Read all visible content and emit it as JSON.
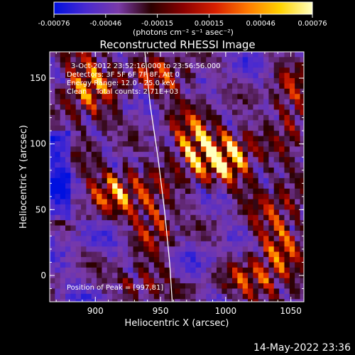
{
  "chart_data": {
    "type": "heatmap",
    "title": "Reconstructed RHESSI Image",
    "xlabel": "Heliocentric X (arcsec)",
    "ylabel": "Heliocentric Y (arcsec)",
    "xlim": [
      865,
      1060
    ],
    "ylim": [
      -20,
      170
    ],
    "x_ticks": [
      900,
      950,
      1000,
      1050
    ],
    "y_ticks": [
      0,
      50,
      100,
      150
    ],
    "colorbar": {
      "ticks": [
        "-0.00076",
        "-0.00046",
        "-0.00015",
        "0.00015",
        "0.00046",
        "0.00076"
      ],
      "range": [
        -0.00076,
        0.00076
      ],
      "units_label": "(photons cm⁻² s⁻¹ asec⁻²)",
      "stops": [
        "#0010e0",
        "#4a2ad0",
        "#7a3aa8",
        "#2a0000",
        "#8a0000",
        "#d82000",
        "#ff7a00",
        "#ffd200",
        "#ffffc0"
      ]
    },
    "annotations": [
      "3-Oct-2012 23:52:16.000 to 23:56:56.000",
      "Detectors: 3F 5F 6F 7F 8F, Att 0",
      "Energy Range: 12.0 - 25.0 keV",
      "Clean    Total counts: 2.71E+03"
    ],
    "peak_label": "Position of Peak = [997,81]",
    "peak": [
      997,
      81
    ],
    "limb_curve": [
      [
        938,
        170
      ],
      [
        942,
        130
      ],
      [
        948,
        90
      ],
      [
        953,
        50
      ],
      [
        957,
        10
      ],
      [
        959,
        -20
      ]
    ],
    "hot_regions": [
      {
        "x": 1000,
        "y": 90,
        "sx": 22,
        "sy": 20,
        "amp": 1.0
      },
      {
        "x": 975,
        "y": 100,
        "sx": 18,
        "sy": 22,
        "amp": 0.8
      },
      {
        "x": 918,
        "y": 65,
        "sx": 25,
        "sy": 18,
        "amp": 0.75
      },
      {
        "x": 945,
        "y": 40,
        "sx": 15,
        "sy": 20,
        "amp": 0.6
      },
      {
        "x": 895,
        "y": 145,
        "sx": 20,
        "sy": 30,
        "amp": 0.7
      },
      {
        "x": 950,
        "y": 150,
        "sx": 25,
        "sy": 15,
        "amp": 0.55
      },
      {
        "x": 1040,
        "y": 30,
        "sx": 20,
        "sy": 40,
        "amp": 0.6
      },
      {
        "x": 1050,
        "y": 130,
        "sx": 15,
        "sy": 30,
        "amp": 0.5
      },
      {
        "x": 1020,
        "y": -5,
        "sx": 25,
        "sy": 15,
        "amp": 0.45
      },
      {
        "x": 935,
        "y": -5,
        "sx": 20,
        "sy": 12,
        "amp": 0.5
      }
    ]
  },
  "footer": {
    "timestamp": "14-May-2022 23:36"
  }
}
